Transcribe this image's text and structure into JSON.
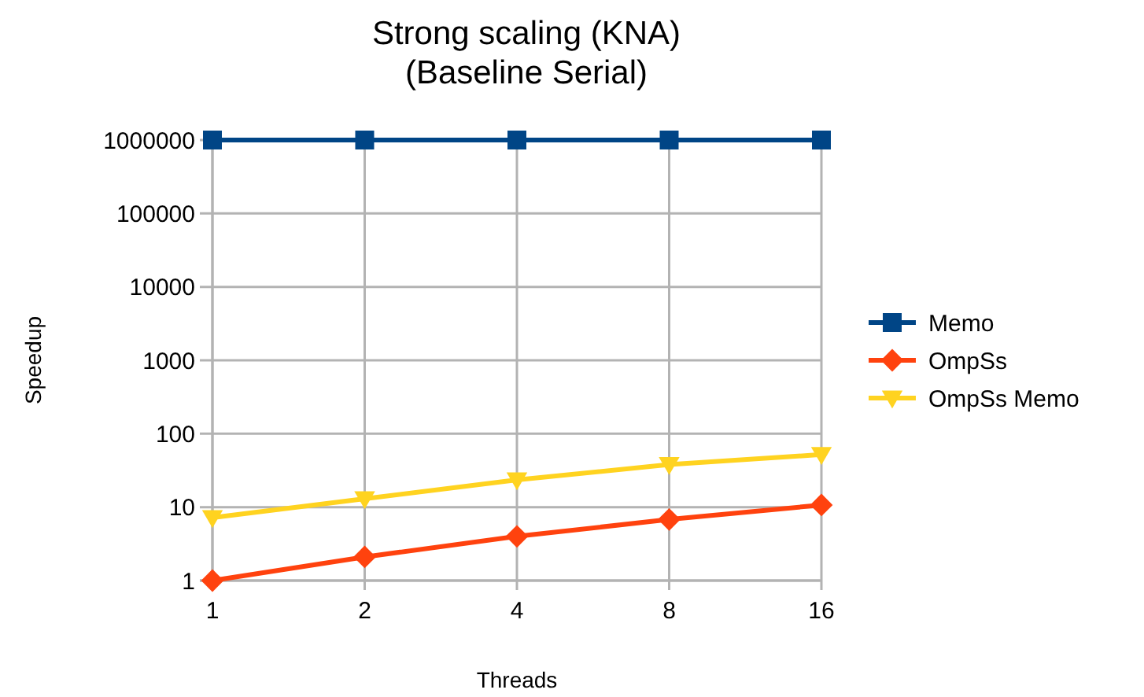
{
  "chart_data": {
    "type": "line",
    "title": "Strong scaling (KNA)\n(Baseline Serial)",
    "xlabel": "Threads",
    "ylabel": "Speedup",
    "categories": [
      "1",
      "2",
      "4",
      "8",
      "16"
    ],
    "log": "y",
    "ylim": [
      1,
      1000000
    ],
    "yticks": [
      1,
      10,
      100,
      1000,
      10000,
      100000,
      1000000
    ],
    "grid": true,
    "legend": "right",
    "series": [
      {
        "name": "Memo",
        "color": "#004586",
        "marker": "square",
        "values": [
          1000000,
          1000000,
          1000000,
          1000000,
          1000000
        ]
      },
      {
        "name": "OmpSs",
        "color": "#ff420e",
        "marker": "diamond",
        "values": [
          1,
          2.1,
          4,
          6.8,
          10.7
        ]
      },
      {
        "name": "OmpSs Memo",
        "color": "#ffd320",
        "marker": "triangle",
        "values": [
          7.2,
          13,
          23.5,
          38,
          52
        ]
      }
    ]
  }
}
